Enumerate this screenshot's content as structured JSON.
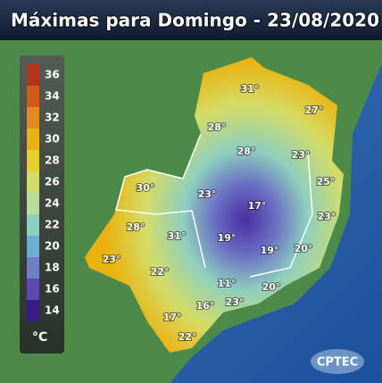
{
  "header": {
    "title": "Máximas para Domingo - 23/08/2020"
  },
  "legend": {
    "ticks": [
      36,
      34,
      32,
      30,
      28,
      26,
      24,
      22,
      20,
      18,
      16,
      14
    ],
    "colors": [
      "#b8321a",
      "#d55a18",
      "#e48a1c",
      "#eab20e",
      "#e7cf2a",
      "#d4dc66",
      "#b8dc9a",
      "#8ecfbe",
      "#6aaed6",
      "#6f7fc8",
      "#5e49b0",
      "#3a1a86"
    ],
    "unit": "°C"
  },
  "labels": [
    "31°",
    "27°",
    "28°",
    "28°",
    "23°",
    "25°",
    "30°",
    "23°",
    "17°",
    "23°",
    "28°",
    "31°",
    "19°",
    "19°",
    "20°",
    "23°",
    "22°",
    "11°",
    "20°",
    "23°",
    "16°",
    "17°",
    "22°"
  ],
  "logo": "CPTEC"
}
